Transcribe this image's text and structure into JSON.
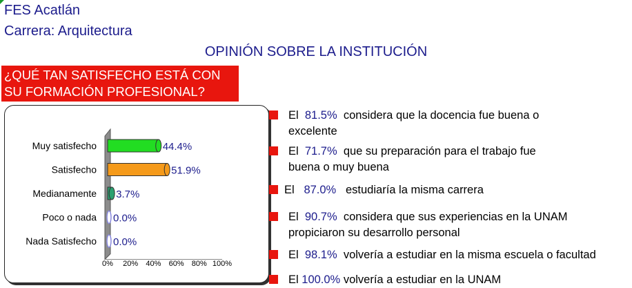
{
  "header": {
    "campus": "FES Acatlán",
    "career": "Carrera: Arquitectura"
  },
  "title": "OPINIÓN SOBRE LA INSTITUCIÓN",
  "question": {
    "line1": "¿QUÉ TAN SATISFECHO ESTÁ CON",
    "line2": "SU FORMACIÓN PROFESIONAL?"
  },
  "colors": {
    "header_text": "#1c1c8c",
    "banner": "#e8160e",
    "bar_green": "#22dd22",
    "bar_orange": "#f59a1a",
    "bar_teal": "#2aa070",
    "bar_empty": "#8888dd"
  },
  "chart_data": {
    "type": "bar",
    "orientation": "horizontal",
    "categories": [
      "Muy satisfecho",
      "Satisfecho",
      "Medianamente",
      "Poco o nada",
      "Nada Satisfecho"
    ],
    "values": [
      44.4,
      51.9,
      3.7,
      0.0,
      0.0
    ],
    "value_labels": [
      "44.4%",
      "51.9%",
      "3.7%",
      "0.0%",
      "0.0%"
    ],
    "xlim": [
      0,
      100
    ],
    "ticks": [
      "0%",
      "20%",
      "40%",
      "60%",
      "80%",
      "100%"
    ],
    "bar_colors": [
      "#22dd22",
      "#f59a1a",
      "#2aa070",
      "#8888dd",
      "#8888dd"
    ],
    "grid": false,
    "legend": "none"
  },
  "statements": [
    {
      "prefix": "El",
      "pct": "81.5%",
      "line1": "considera que la docencia fue buena o",
      "line2": "excelente"
    },
    {
      "prefix": "El",
      "pct": "71.7%",
      "line1": "que su preparación para el trabajo fue",
      "line2": "buena o muy buena"
    },
    {
      "prefix": "El",
      "pct": "87.0%",
      "line1": "estudiaría la misma carrera",
      "line2": ""
    },
    {
      "prefix": "El",
      "pct": "90.7%",
      "line1": "considera que sus experiencias en la UNAM",
      "line2": "propiciaron su desarrollo personal"
    },
    {
      "prefix": "El",
      "pct": "98.1%",
      "line1": "volvería a estudiar en la misma escuela o facultad",
      "line2": ""
    },
    {
      "prefix": "El",
      "pct": "100.0%",
      "line1": "volvería a estudiar en la UNAM",
      "line2": ""
    }
  ]
}
